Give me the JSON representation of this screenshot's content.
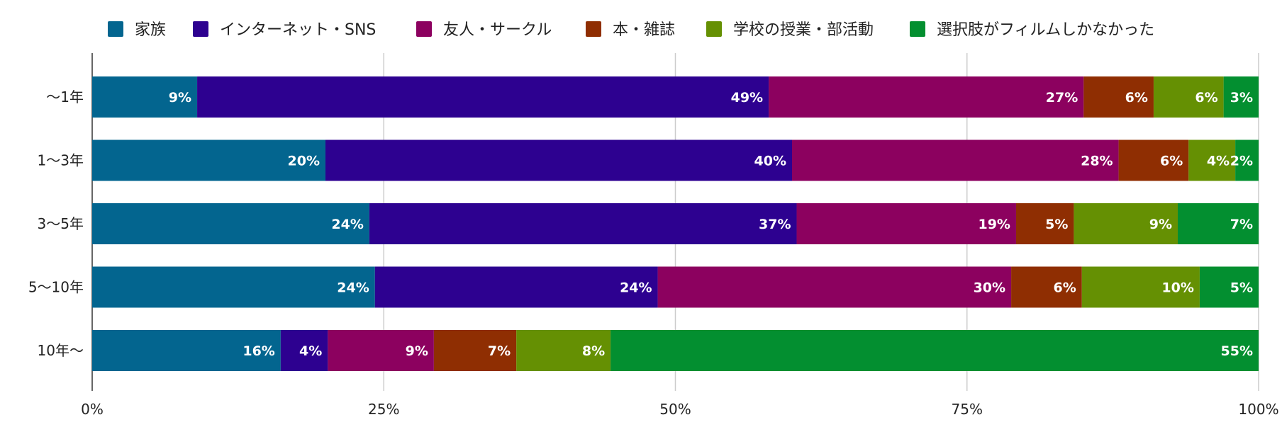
{
  "chart_data": {
    "type": "bar",
    "orientation": "horizontal",
    "stacked": "percent",
    "categories": [
      "〜1年",
      "1〜3年",
      "3〜5年",
      "5〜10年",
      "10年〜"
    ],
    "series": [
      {
        "name": "家族",
        "color": "#03658f",
        "values": [
          9,
          20,
          24,
          24,
          16
        ],
        "labels": [
          "9%",
          "20%",
          "24%",
          "24%",
          "16%"
        ]
      },
      {
        "name": "インターネット・SNS",
        "color": "#2d0190",
        "values": [
          49,
          40,
          37,
          24,
          4
        ],
        "labels": [
          "49%",
          "40%",
          "37%",
          "24%",
          "4%"
        ]
      },
      {
        "name": "友人・サークル",
        "color": "#8c015f",
        "values": [
          27,
          28,
          19,
          30,
          9
        ],
        "labels": [
          "27%",
          "28%",
          "19%",
          "30%",
          "9%"
        ]
      },
      {
        "name": "本・雑誌",
        "color": "#8f2e02",
        "values": [
          6,
          6,
          5,
          6,
          7
        ],
        "labels": [
          "6%",
          "6%",
          "5%",
          "6%",
          "7%"
        ]
      },
      {
        "name": "学校の授業・部活動",
        "color": "#659003",
        "values": [
          6,
          4,
          9,
          10,
          8
        ],
        "labels": [
          "6%",
          "4%",
          "9%",
          "10%",
          "8%"
        ]
      },
      {
        "name": "選択肢がフィルムしかなかった",
        "color": "#038f30",
        "values": [
          3,
          2,
          7,
          5,
          55
        ],
        "labels": [
          "3%",
          "2%",
          "7%",
          "5%",
          "55%"
        ]
      }
    ],
    "xlim": [
      0,
      100
    ],
    "xticks": [
      0,
      25,
      50,
      75,
      100
    ],
    "xtick_labels": [
      "0%",
      "25%",
      "50%",
      "75%",
      "100%"
    ],
    "grid": true,
    "legend_position": "top"
  }
}
